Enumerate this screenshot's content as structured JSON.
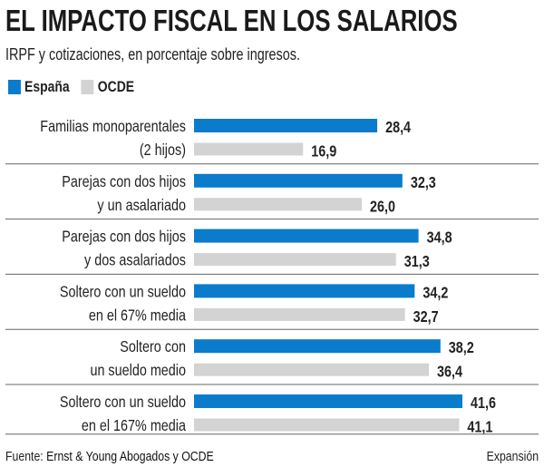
{
  "chart_data": {
    "type": "bar",
    "orientation": "horizontal",
    "title": "EL IMPACTO FISCAL EN LOS SALARIOS",
    "subtitle": "IRPF y cotizaciones, en porcentaje sobre ingresos.",
    "categories": [
      [
        "Familias monoparentales",
        "(2 hijos)"
      ],
      [
        "Parejas con dos hijos",
        "y un asalariado"
      ],
      [
        "Parejas con dos hijos",
        "y dos asalariados"
      ],
      [
        "Soltero con un sueldo",
        "en el 67% media"
      ],
      [
        "Soltero con",
        "un sueldo medio"
      ],
      [
        "Soltero con un sueldo",
        "en el 167% media"
      ]
    ],
    "series": [
      {
        "name": "España",
        "color": "#0a7ccb",
        "values": [
          28.4,
          32.3,
          34.8,
          34.2,
          38.2,
          41.6
        ],
        "labels": [
          "28,4",
          "32,3",
          "34,8",
          "34,2",
          "38,2",
          "41,6"
        ]
      },
      {
        "name": "OCDE",
        "color": "#d3d3d3",
        "values": [
          16.9,
          26.0,
          31.3,
          32.7,
          36.4,
          41.1
        ],
        "labels": [
          "16,9",
          "26,0",
          "31,3",
          "32,7",
          "36,4",
          "41,1"
        ]
      }
    ],
    "xlim": [
      0,
      42
    ],
    "grid": false,
    "legend_placement": "top-left"
  },
  "footer": {
    "source_label": "Fuente:",
    "source": "Ernst & Young Abogados y OCDE",
    "credit": "Expansión"
  }
}
